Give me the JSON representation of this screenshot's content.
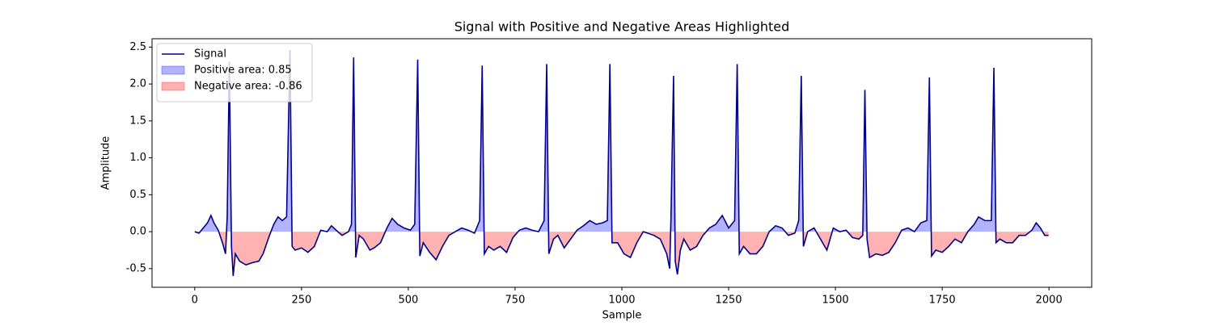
{
  "chart_data": {
    "type": "line",
    "title": "Signal with Positive and Negative Areas Highlighted",
    "x_label": "Sample",
    "y_label": "Amplitude",
    "x": [
      0,
      10,
      20,
      30,
      38,
      45,
      55,
      65,
      72,
      76,
      81,
      86,
      90,
      95,
      105,
      120,
      135,
      150,
      160,
      175,
      185,
      195,
      205,
      215,
      223,
      228,
      235,
      250,
      265,
      280,
      295,
      310,
      320,
      335,
      345,
      360,
      367,
      372,
      377,
      385,
      395,
      410,
      420,
      435,
      450,
      462,
      475,
      490,
      505,
      515,
      522,
      527,
      535,
      550,
      565,
      580,
      595,
      610,
      625,
      640,
      655,
      667,
      673,
      678,
      688,
      700,
      715,
      730,
      745,
      760,
      775,
      790,
      805,
      818,
      824,
      829,
      840,
      850,
      865,
      880,
      895,
      910,
      925,
      940,
      955,
      966,
      972,
      977,
      990,
      1005,
      1020,
      1035,
      1050,
      1060,
      1075,
      1090,
      1105,
      1112,
      1115,
      1121,
      1125,
      1130,
      1137,
      1145,
      1160,
      1175,
      1190,
      1205,
      1220,
      1235,
      1250,
      1264,
      1270,
      1275,
      1285,
      1300,
      1315,
      1330,
      1345,
      1360,
      1375,
      1390,
      1405,
      1414,
      1420,
      1425,
      1435,
      1450,
      1465,
      1480,
      1495,
      1510,
      1525,
      1540,
      1555,
      1564,
      1569,
      1574,
      1580,
      1595,
      1610,
      1625,
      1640,
      1655,
      1670,
      1685,
      1700,
      1714,
      1720,
      1725,
      1735,
      1750,
      1765,
      1780,
      1795,
      1810,
      1825,
      1835,
      1850,
      1865,
      1871,
      1876,
      1885,
      1900,
      1915,
      1930,
      1945,
      1960,
      1970,
      1980,
      1990,
      1999
    ],
    "series": [
      {
        "name": "Signal",
        "color": "#00008b",
        "values": [
          0.0,
          -0.02,
          0.05,
          0.12,
          0.22,
          0.12,
          0.02,
          -0.15,
          -0.3,
          0.2,
          2.3,
          -0.2,
          -0.6,
          -0.3,
          -0.4,
          -0.45,
          -0.42,
          -0.4,
          -0.3,
          -0.05,
          0.1,
          0.2,
          0.15,
          0.2,
          2.46,
          -0.2,
          -0.25,
          -0.22,
          -0.28,
          -0.2,
          0.02,
          0.0,
          0.08,
          0.0,
          -0.05,
          0.0,
          0.1,
          2.36,
          -0.35,
          -0.05,
          -0.1,
          -0.25,
          -0.22,
          -0.15,
          0.05,
          0.18,
          0.1,
          0.05,
          0.02,
          0.1,
          2.33,
          -0.33,
          -0.15,
          -0.28,
          -0.38,
          -0.2,
          -0.05,
          0.0,
          0.05,
          0.02,
          -0.02,
          0.15,
          2.25,
          -0.3,
          -0.2,
          -0.25,
          -0.2,
          -0.28,
          -0.08,
          0.02,
          0.05,
          0.02,
          0.0,
          0.15,
          2.27,
          -0.3,
          -0.1,
          -0.05,
          -0.22,
          -0.1,
          0.02,
          0.08,
          0.15,
          0.1,
          0.12,
          0.15,
          2.27,
          -0.15,
          -0.15,
          -0.3,
          -0.35,
          -0.15,
          0.0,
          -0.02,
          -0.05,
          -0.1,
          -0.3,
          -0.5,
          0.2,
          2.11,
          -0.4,
          -0.58,
          -0.25,
          -0.1,
          -0.25,
          -0.2,
          -0.05,
          0.05,
          0.1,
          0.22,
          0.05,
          0.15,
          2.27,
          -0.3,
          -0.2,
          -0.3,
          -0.3,
          -0.2,
          0.0,
          0.08,
          0.05,
          -0.05,
          -0.02,
          0.15,
          2.11,
          -0.2,
          0.0,
          0.05,
          -0.1,
          -0.25,
          0.05,
          0.0,
          0.02,
          -0.08,
          -0.1,
          -0.05,
          1.92,
          -0.1,
          -0.35,
          -0.3,
          -0.32,
          -0.28,
          -0.15,
          0.02,
          0.05,
          0.0,
          0.12,
          0.15,
          2.09,
          -0.33,
          -0.25,
          -0.28,
          -0.2,
          -0.1,
          -0.15,
          0.0,
          0.1,
          0.2,
          0.15,
          0.15,
          2.22,
          -0.15,
          -0.1,
          -0.15,
          -0.15,
          -0.05,
          -0.05,
          0.02,
          0.12,
          0.05,
          -0.05,
          -0.05
        ]
      }
    ],
    "areas": [
      {
        "name": "Positive area: 0.85",
        "color": "blue",
        "opacity": 0.3,
        "side": "positive"
      },
      {
        "name": "Negative area: -0.86",
        "color": "red",
        "opacity": 0.3,
        "side": "negative"
      }
    ],
    "xlim": [
      -100,
      2100
    ],
    "ylim": [
      -0.753,
      2.613
    ],
    "xticks": [
      0,
      250,
      500,
      750,
      1000,
      1250,
      1500,
      1750,
      2000
    ],
    "yticks": [
      -0.5,
      {
        "value": 0,
        "label": "0.0"
      },
      0.5,
      {
        "value": 1,
        "label": "1.0"
      },
      1.5,
      {
        "value": 2,
        "label": "2.0"
      },
      2.5
    ],
    "legend": "upper left"
  }
}
